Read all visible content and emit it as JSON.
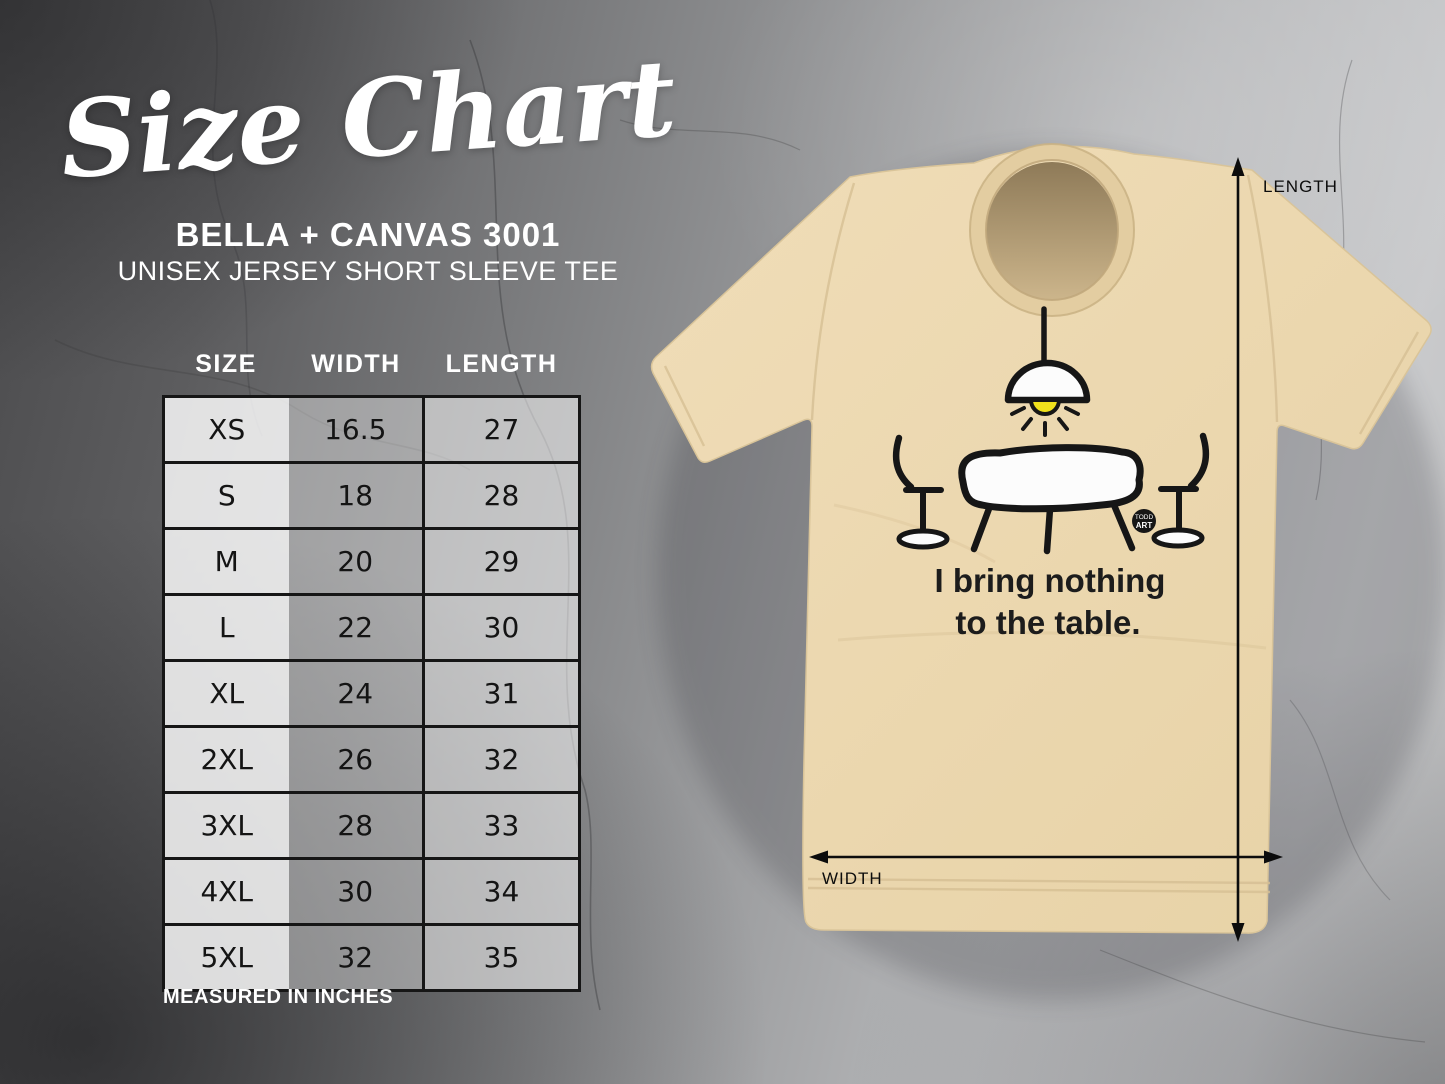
{
  "header": {
    "title": "Size Chart",
    "brand_line": "BELLA + CANVAS 3001",
    "product_line": "UNISEX JERSEY SHORT SLEEVE TEE"
  },
  "size_table": {
    "columns": [
      "SIZE",
      "WIDTH",
      "LENGTH"
    ],
    "rows": [
      [
        "XS",
        "16.5",
        "27"
      ],
      [
        "S",
        "18",
        "28"
      ],
      [
        "M",
        "20",
        "29"
      ],
      [
        "L",
        "22",
        "30"
      ],
      [
        "XL",
        "24",
        "31"
      ],
      [
        "2XL",
        "26",
        "32"
      ],
      [
        "3XL",
        "28",
        "33"
      ],
      [
        "4XL",
        "30",
        "34"
      ],
      [
        "5XL",
        "32",
        "35"
      ]
    ],
    "footnote": "MEASURED IN INCHES"
  },
  "mockup": {
    "caption_line1": "I bring nothing",
    "caption_line2": "to the table.",
    "logo_line1": "TODD",
    "logo_line2": "ART",
    "length_label": "LENGTH",
    "width_label": "WIDTH"
  },
  "colors": {
    "shirt": "#ecd8af",
    "design_ink": "#161616",
    "bulb_yellow": "#f0e11c",
    "text_white": "#ffffff",
    "table_border": "#161616",
    "background_dark": "#4a4a4c",
    "background_light": "#c9cacc"
  },
  "chart_data": {
    "type": "table",
    "title": "Size Chart",
    "subtitle": "BELLA + CANVAS 3001 — UNISEX JERSEY SHORT SLEEVE TEE",
    "columns": [
      "SIZE",
      "WIDTH",
      "LENGTH"
    ],
    "rows": [
      [
        "XS",
        16.5,
        27
      ],
      [
        "S",
        18,
        28
      ],
      [
        "M",
        20,
        29
      ],
      [
        "L",
        22,
        30
      ],
      [
        "XL",
        24,
        31
      ],
      [
        "2XL",
        26,
        32
      ],
      [
        "3XL",
        28,
        33
      ],
      [
        "4XL",
        30,
        34
      ],
      [
        "5XL",
        32,
        35
      ]
    ],
    "units": "inches"
  }
}
